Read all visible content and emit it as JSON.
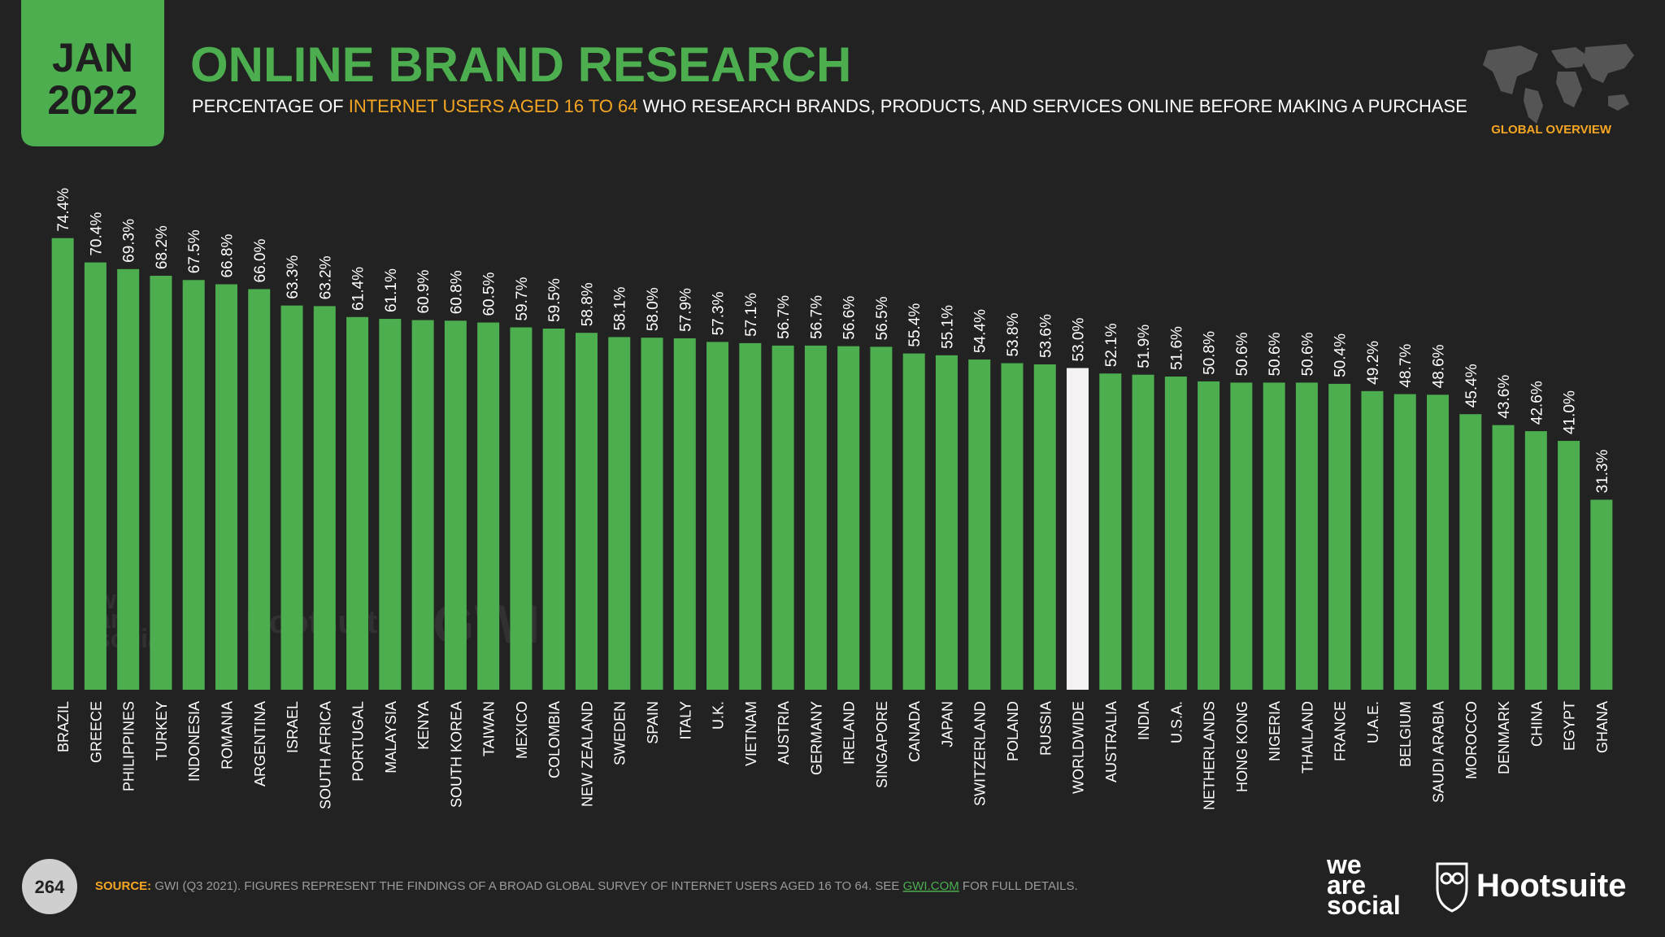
{
  "badge": {
    "month": "JAN",
    "year": "2022"
  },
  "header": {
    "subtitle_parts": [
      "PERCENTAGE OF ",
      "INTERNET USERS AGED 16 TO 64",
      " WHO RESEARCH BRANDS, PRODUCTS, AND SERVICES ONLINE BEFORE MAKING A PURCHASE"
    ],
    "section": "GLOBAL OVERVIEW"
  },
  "chart_data": {
    "type": "bar",
    "title": "ONLINE BRAND RESEARCH",
    "categories": [
      "BRAZIL",
      "GREECE",
      "PHILIPPINES",
      "TURKEY",
      "INDONESIA",
      "ROMANIA",
      "ARGENTINA",
      "ISRAEL",
      "SOUTH AFRICA",
      "PORTUGAL",
      "MALAYSIA",
      "KENYA",
      "SOUTH KOREA",
      "TAIWAN",
      "MEXICO",
      "COLOMBIA",
      "NEW ZEALAND",
      "SWEDEN",
      "SPAIN",
      "ITALY",
      "U.K.",
      "VIETNAM",
      "AUSTRIA",
      "GERMANY",
      "IRELAND",
      "SINGAPORE",
      "CANADA",
      "JAPAN",
      "SWITZERLAND",
      "POLAND",
      "RUSSIA",
      "WORLDWIDE",
      "AUSTRALIA",
      "INDIA",
      "U.S.A.",
      "NETHERLANDS",
      "HONG KONG",
      "NIGERIA",
      "THAILAND",
      "FRANCE",
      "U.A.E.",
      "BELGIUM",
      "SAUDI ARABIA",
      "MOROCCO",
      "DENMARK",
      "CHINA",
      "EGYPT",
      "GHANA"
    ],
    "values": [
      74.4,
      70.4,
      69.3,
      68.2,
      67.5,
      66.8,
      66.0,
      63.3,
      63.2,
      61.4,
      61.1,
      60.9,
      60.8,
      60.5,
      59.7,
      59.5,
      58.8,
      58.1,
      58.0,
      57.9,
      57.3,
      57.1,
      56.7,
      56.7,
      56.6,
      56.5,
      55.4,
      55.1,
      54.4,
      53.8,
      53.6,
      53.0,
      52.1,
      51.9,
      51.6,
      50.8,
      50.6,
      50.6,
      50.6,
      50.4,
      49.2,
      48.7,
      48.6,
      45.4,
      43.6,
      42.6,
      41.0,
      31.3
    ],
    "value_labels": [
      "74.4%",
      "70.4%",
      "69.3%",
      "68.2%",
      "67.5%",
      "66.8%",
      "66.0%",
      "63.3%",
      "63.2%",
      "61.4%",
      "61.1%",
      "60.9%",
      "60.8%",
      "60.5%",
      "59.7%",
      "59.5%",
      "58.8%",
      "58.1%",
      "58.0%",
      "57.9%",
      "57.3%",
      "57.1%",
      "56.7%",
      "56.7%",
      "56.6%",
      "56.5%",
      "55.4%",
      "55.1%",
      "54.4%",
      "53.8%",
      "53.6%",
      "53.0%",
      "52.1%",
      "51.9%",
      "51.6%",
      "50.8%",
      "50.6%",
      "50.6%",
      "50.6%",
      "50.4%",
      "49.2%",
      "48.7%",
      "48.6%",
      "45.4%",
      "43.6%",
      "42.6%",
      "41.0%",
      "31.3%"
    ],
    "colors": [
      "#4cae4f",
      "#4cae4f",
      "#4cae4f",
      "#4cae4f",
      "#4cae4f",
      "#4cae4f",
      "#4cae4f",
      "#4cae4f",
      "#4cae4f",
      "#4cae4f",
      "#4cae4f",
      "#4cae4f",
      "#4cae4f",
      "#4cae4f",
      "#4cae4f",
      "#4cae4f",
      "#4cae4f",
      "#4cae4f",
      "#4cae4f",
      "#4cae4f",
      "#4cae4f",
      "#4cae4f",
      "#4cae4f",
      "#4cae4f",
      "#4cae4f",
      "#4cae4f",
      "#4cae4f",
      "#4cae4f",
      "#4cae4f",
      "#4cae4f",
      "#4cae4f",
      "#f4f2f2",
      "#4cae4f",
      "#4cae4f",
      "#4cae4f",
      "#4cae4f",
      "#4cae4f",
      "#4cae4f",
      "#4cae4f",
      "#4cae4f",
      "#4cae4f",
      "#4cae4f",
      "#4cae4f",
      "#4cae4f",
      "#4cae4f",
      "#4cae4f",
      "#4cae4f",
      "#4cae4f"
    ],
    "ylim": [
      0,
      80
    ]
  },
  "footer": {
    "page": "264",
    "source_label": "SOURCE:",
    "source_parts": [
      " GWI (Q3 2021). FIGURES REPRESENT THE FINDINGS OF A BROAD GLOBAL SURVEY OF INTERNET USERS AGED 16 TO 64. SEE ",
      "GWI.COM",
      " FOR FULL DETAILS."
    ]
  },
  "branding": {
    "wearesocial": [
      "we",
      "are",
      "social"
    ],
    "hootsuite": "Hootsuite",
    "watermark_wearesocial": [
      "we",
      "are",
      "social"
    ],
    "watermark_hootsuite": "Hootsuite",
    "watermark_gwi": "GWI."
  }
}
